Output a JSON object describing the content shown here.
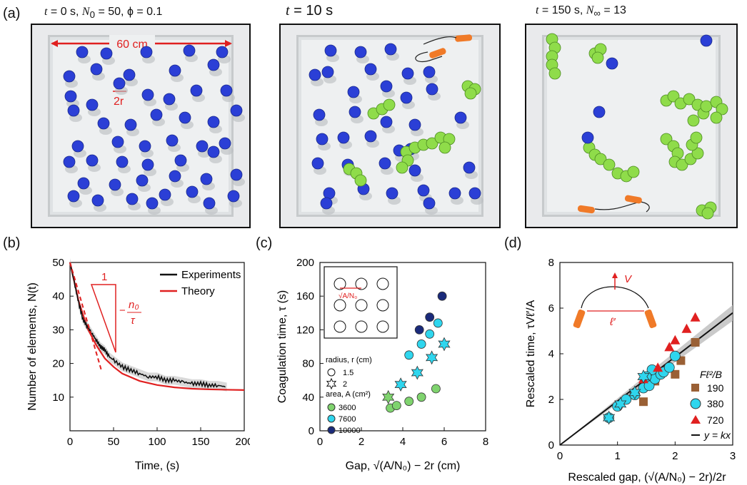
{
  "panel_a": {
    "label": "(a)",
    "photos": [
      {
        "title_pre": "t",
        "title_mid": " = 0 s, ",
        "title_n": "N",
        "title_n_sub": "0",
        "title_post": " = 50, ϕ = 0.1",
        "annotation_width": "60 cm",
        "annotation_r": "2r"
      },
      {
        "title_pre": "t",
        "title_mid": " = 10 s",
        "title_n": "",
        "title_n_sub": "",
        "title_post": ""
      },
      {
        "title_pre": "t",
        "title_mid": " = 150 s, ",
        "title_n": "N",
        "title_n_sub": "∞",
        "title_post": " = 13"
      }
    ],
    "colors": {
      "blue": "#2b3fd6",
      "green": "#8fdc4a",
      "orange": "#f07a28",
      "red": "#e02020"
    }
  },
  "panel_b": {
    "label": "(b)",
    "chart_data": {
      "type": "line",
      "xlabel": "Time, (s)",
      "ylabel": "Number of elements, N(t)",
      "xlim": [
        0,
        200
      ],
      "ylim": [
        0,
        50
      ],
      "xticks": [
        "0",
        "50",
        "100",
        "150",
        "200"
      ],
      "yticks": [
        "10",
        "20",
        "30",
        "40",
        "50"
      ],
      "legend": [
        "Experiments",
        "Theory"
      ],
      "slope_label_1": "1",
      "slope_label_num": "n₀",
      "slope_label_den": "τ",
      "series": [
        {
          "name": "Experiments",
          "x": [
            0,
            5,
            10,
            15,
            20,
            25,
            30,
            35,
            40,
            45,
            50,
            60,
            70,
            80,
            90,
            100,
            110,
            120,
            130,
            140,
            150,
            160,
            170,
            180
          ],
          "values": [
            50,
            44,
            38,
            33,
            31,
            29,
            27,
            25,
            24,
            22,
            21,
            19,
            18,
            17,
            16,
            16,
            15,
            15,
            14.5,
            14,
            14,
            13.5,
            13.5,
            13
          ]
        },
        {
          "name": "Theory",
          "x": [
            0,
            10,
            20,
            30,
            40,
            50,
            60,
            80,
            100,
            120,
            140,
            160,
            180,
            200
          ],
          "values": [
            50,
            38.5,
            30.5,
            25.5,
            21.5,
            19,
            17,
            14.8,
            13.6,
            12.9,
            12.5,
            12.3,
            12.2,
            12.1
          ]
        }
      ]
    }
  },
  "panel_c": {
    "label": "(c)",
    "chart_data": {
      "type": "scatter",
      "xlabel": "Gap, √(A/N₀) − 2r (cm)",
      "ylabel": "Coagulation time, τ (s)",
      "xlim": [
        0,
        8
      ],
      "ylim": [
        0,
        200
      ],
      "xticks": [
        "0",
        "2",
        "4",
        "6",
        "8"
      ],
      "yticks": [
        "0",
        "40",
        "80",
        "120",
        "160",
        "200"
      ],
      "inset_label": "√A/N₀",
      "legend_radius_title": "radius, r (cm)",
      "legend_radius": [
        "1.5",
        "2"
      ],
      "legend_area_title": "area, A (cm²)",
      "legend_area": [
        "3600",
        "7600",
        "10000"
      ],
      "series": [
        {
          "name": "3600 circle",
          "x": [
            3.4,
            3.7,
            4.3,
            4.9,
            5.6
          ],
          "values": [
            27,
            30,
            35,
            40,
            50
          ]
        },
        {
          "name": "7600 circle",
          "x": [
            4.3,
            4.9,
            5.3,
            5.7
          ],
          "values": [
            90,
            103,
            115,
            128
          ]
        },
        {
          "name": "10000 circle",
          "x": [
            4.8,
            5.3,
            5.9
          ],
          "values": [
            120,
            135,
            160
          ]
        },
        {
          "name": "3600 star",
          "x": [
            3.3
          ],
          "values": [
            40
          ]
        },
        {
          "name": "7600 star",
          "x": [
            3.9,
            4.7,
            5.4,
            6.0
          ],
          "values": [
            55,
            69,
            87,
            103
          ]
        }
      ]
    }
  },
  "panel_d": {
    "label": "(d)",
    "chart_data": {
      "type": "scatter",
      "xlabel": "Rescaled gap, (√(A/N₀) − 2r)/2r",
      "ylabel": "Rescaled time, τVℓ′/A",
      "xlim": [
        0,
        3
      ],
      "ylim": [
        0,
        8
      ],
      "xticks": [
        "0",
        "1",
        "2",
        "3"
      ],
      "yticks": [
        "0",
        "2",
        "4",
        "6",
        "8"
      ],
      "inset_v": "V",
      "inset_l": "ℓ′",
      "legend_title": "Fℓ²/B",
      "legend": [
        "190",
        "380",
        "720",
        "y = kx"
      ],
      "fit_slope": 1.93,
      "series": [
        {
          "name": "190",
          "x": [
            1.45,
            1.65,
            2.0,
            2.1,
            2.35
          ],
          "values": [
            1.9,
            2.8,
            3.1,
            3.7,
            4.5
          ]
        },
        {
          "name": "380",
          "x": [
            0.85,
            1.0,
            1.15,
            1.3,
            1.45,
            1.55,
            1.65,
            1.75,
            1.8,
            1.9,
            2.0,
            1.6,
            1.5
          ],
          "values": [
            1.2,
            1.7,
            2.0,
            2.2,
            2.5,
            2.6,
            2.9,
            3.1,
            3.2,
            3.4,
            3.9,
            3.3,
            3.0
          ]
        },
        {
          "name": "720",
          "x": [
            1.45,
            1.7,
            1.9,
            2.0,
            2.2,
            2.35
          ],
          "values": [
            2.9,
            3.4,
            4.3,
            4.6,
            5.1,
            5.6
          ]
        }
      ]
    }
  }
}
